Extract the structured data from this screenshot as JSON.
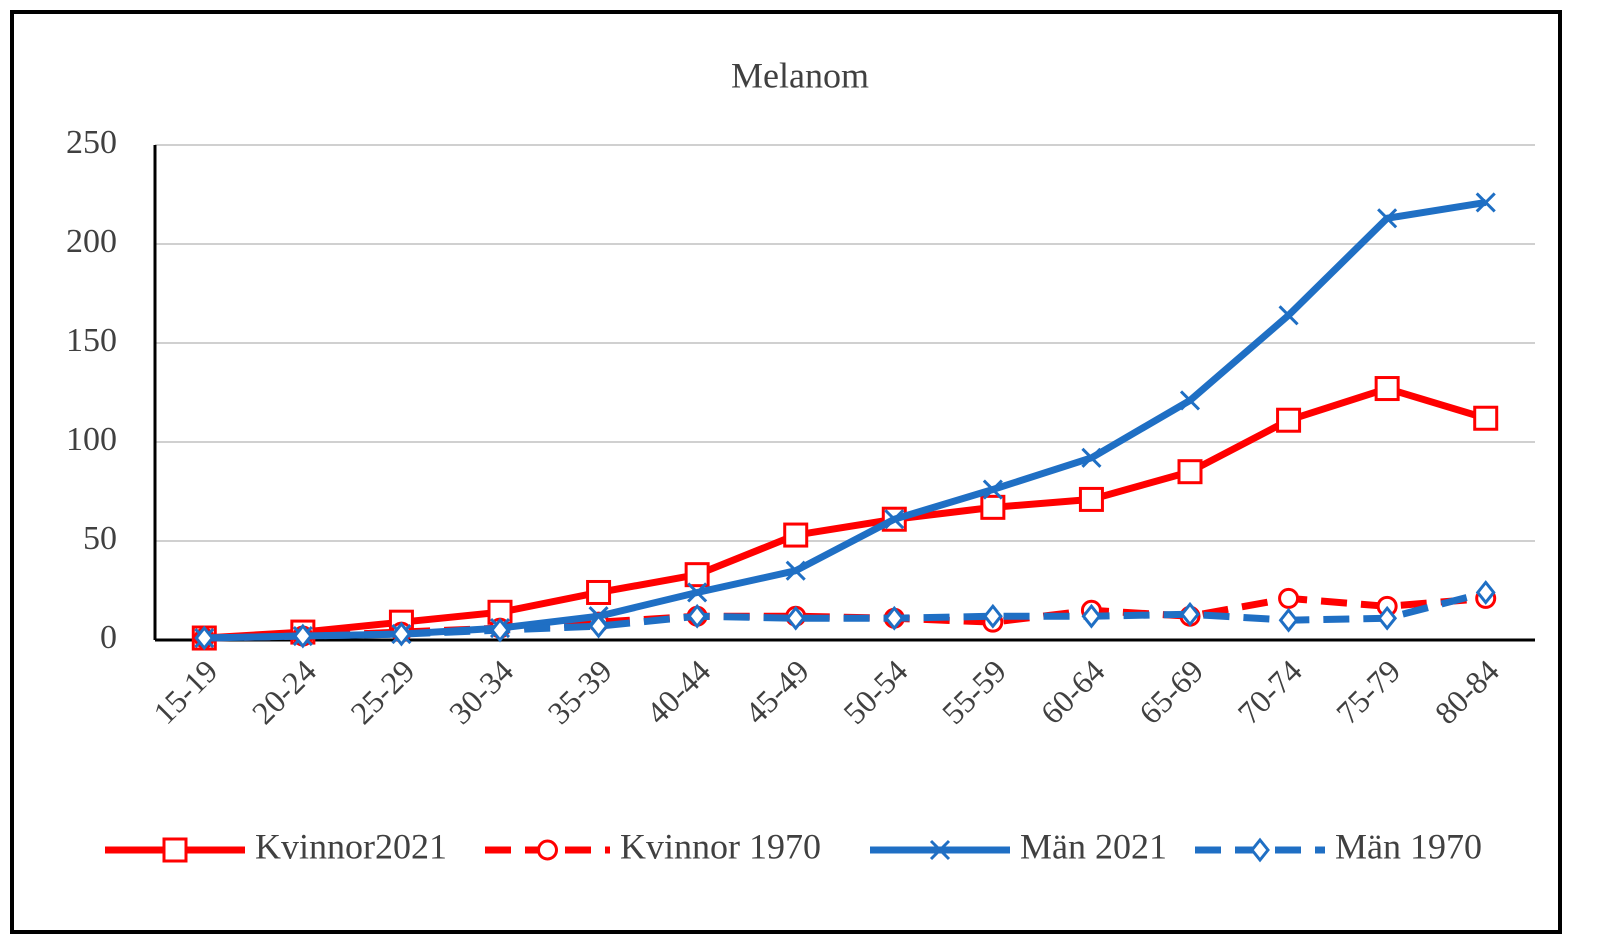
{
  "chart_data": {
    "type": "line",
    "title": "Melanom",
    "categories": [
      "15-19",
      "20-24",
      "25-29",
      "30-34",
      "35-39",
      "40-44",
      "45-49",
      "50-54",
      "55-59",
      "60-64",
      "65-69",
      "70-74",
      "75-79",
      "80-84"
    ],
    "series": [
      {
        "name": "Kvinnor2021",
        "color": "#ff0000",
        "line_style": "solid",
        "marker": "square",
        "values": [
          1,
          4,
          9,
          14,
          24,
          33,
          53,
          61,
          67,
          71,
          85,
          111,
          127,
          112
        ]
      },
      {
        "name": "Kvinnor 1970",
        "color": "#ff0000",
        "line_style": "dashed",
        "marker": "circle",
        "values": [
          1,
          2,
          4,
          6,
          9,
          12,
          12,
          11,
          9,
          15,
          12,
          21,
          17,
          21
        ]
      },
      {
        "name": "Män 2021",
        "color": "#1f6fc4",
        "line_style": "solid",
        "marker": "x",
        "values": [
          1,
          2,
          3,
          6,
          12,
          24,
          35,
          61,
          76,
          92,
          121,
          164,
          213,
          221
        ]
      },
      {
        "name": "Män 1970",
        "color": "#1f6fc4",
        "line_style": "dashed",
        "marker": "diamond",
        "values": [
          1,
          2,
          3,
          5,
          7,
          12,
          11,
          11,
          12,
          12,
          13,
          10,
          11,
          24
        ]
      }
    ],
    "ylim": [
      0,
      250
    ],
    "yticks": [
      0,
      50,
      100,
      150,
      200,
      250
    ],
    "grid": true,
    "legend": "bottom"
  }
}
